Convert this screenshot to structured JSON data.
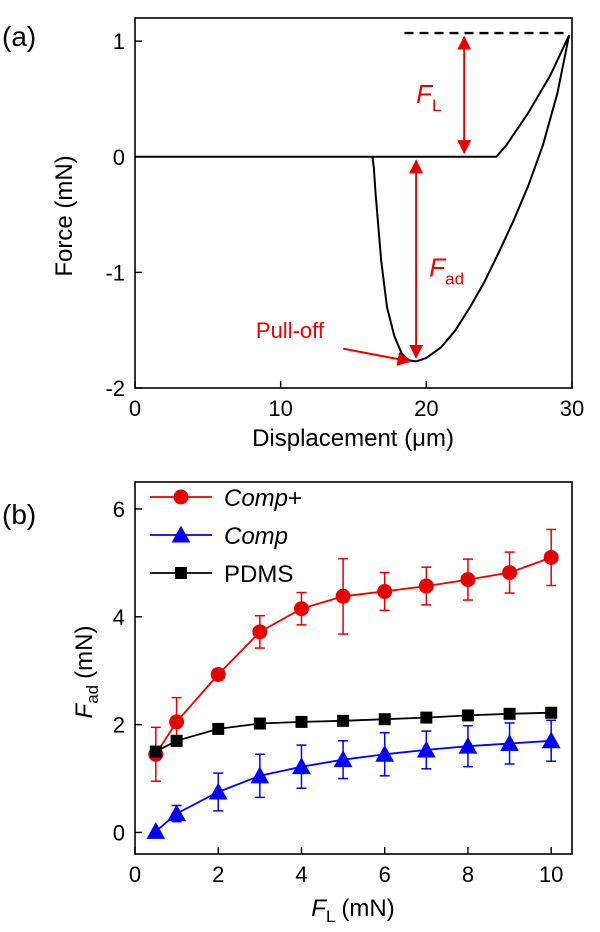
{
  "chart_data": [
    {
      "panel": "(a)",
      "type": "line",
      "xlabel": "Displacement (μm)",
      "ylabel": "Force (mN)",
      "xlim": [
        0,
        30
      ],
      "ylim": [
        -2,
        1.2
      ],
      "xticks": [
        "0",
        "10",
        "20",
        "30"
      ],
      "yticks": [
        "-2",
        "-1",
        "0",
        "1"
      ],
      "xtick_values": [
        0,
        10,
        20,
        30
      ],
      "ytick_values": [
        -2,
        -1,
        0,
        1
      ],
      "series": [
        {
          "curve": "approach",
          "color": "#000000",
          "x": [
            0,
            5,
            10,
            15,
            20,
            24.8,
            25.5,
            27,
            28.5,
            29.8
          ],
          "y": [
            0,
            0,
            0,
            0,
            0,
            0,
            0.1,
            0.38,
            0.7,
            1.05
          ]
        },
        {
          "curve": "retraction",
          "color": "#000000",
          "x": [
            29.8,
            29,
            28,
            27,
            26,
            25,
            24,
            23,
            22,
            21,
            20,
            19.3,
            18.8,
            18.3,
            17.8,
            17.3,
            16.9,
            16.7,
            16.5,
            16.4,
            16.3
          ],
          "y": [
            1.05,
            0.55,
            0.1,
            -0.25,
            -0.55,
            -0.82,
            -1.08,
            -1.3,
            -1.5,
            -1.65,
            -1.74,
            -1.77,
            -1.76,
            -1.7,
            -1.55,
            -1.3,
            -0.9,
            -0.6,
            -0.3,
            -0.1,
            0
          ]
        }
      ],
      "annotations": {
        "fl_symbol": "F",
        "fl_sub": "L",
        "fad_symbol": "F",
        "fad_sub": "ad",
        "pulloff": "Pull-off"
      },
      "annotation_color": "#e60000",
      "dashed_level": 1.07,
      "pulloff_point": [
        19.3,
        -1.77
      ]
    },
    {
      "panel": "(b)",
      "type": "line",
      "xlabel_symbol": "F",
      "xlabel_sub": "L",
      "xlabel_unit": "(mN)",
      "ylabel_symbol": "F",
      "ylabel_sub": "ad",
      "ylabel_unit": "(mN)",
      "xlim": [
        0,
        10.5
      ],
      "ylim": [
        -0.4,
        6.5
      ],
      "xticks": [
        "0",
        "2",
        "4",
        "6",
        "8",
        "10"
      ],
      "yticks": [
        "0",
        "2",
        "4",
        "6"
      ],
      "xtick_values": [
        0,
        2,
        4,
        6,
        8,
        10
      ],
      "ytick_values": [
        0,
        2,
        4,
        6
      ],
      "x": [
        0.5,
        1,
        2,
        3,
        4,
        5,
        6,
        7,
        8,
        9,
        10
      ],
      "legend_placement": "top-left",
      "series": [
        {
          "name": "Comp",
          "name_suffix": "+",
          "color": "#e60000",
          "marker": "circle",
          "values": [
            1.45,
            2.05,
            2.93,
            3.72,
            4.15,
            4.38,
            4.47,
            4.57,
            4.69,
            4.82,
            5.1
          ],
          "errors": [
            0.5,
            0.45,
            0.1,
            0.3,
            0.3,
            0.7,
            0.35,
            0.35,
            0.38,
            0.38,
            0.52
          ]
        },
        {
          "name": "Comp",
          "name_suffix": "",
          "color": "#0000ff",
          "marker": "triangle",
          "values": [
            0.02,
            0.35,
            0.75,
            1.05,
            1.22,
            1.35,
            1.45,
            1.53,
            1.6,
            1.65,
            1.7
          ],
          "errors": [
            0.05,
            0.15,
            0.35,
            0.4,
            0.4,
            0.35,
            0.4,
            0.35,
            0.38,
            0.38,
            0.38
          ]
        },
        {
          "name": "PDMS",
          "name_suffix": "",
          "color": "#000000",
          "marker": "square",
          "values": [
            1.5,
            1.7,
            1.92,
            2.02,
            2.05,
            2.07,
            2.1,
            2.13,
            2.17,
            2.2,
            2.22
          ],
          "errors": [
            0.05,
            0.05,
            0.05,
            0.05,
            0.05,
            0.05,
            0.05,
            0.05,
            0.05,
            0.05,
            0.05
          ]
        }
      ]
    }
  ]
}
